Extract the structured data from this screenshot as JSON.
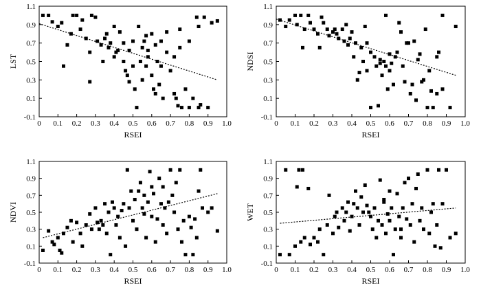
{
  "chart_data": [
    {
      "type": "scatter",
      "xlabel": "RSEI",
      "ylabel": "LST",
      "xlim": [
        0,
        1.0
      ],
      "ylim": [
        -0.1,
        1.1
      ],
      "xticks": [
        "0",
        "0.1",
        "0.2",
        "0.3",
        "0.4",
        "0.5",
        "0.6",
        "0.7",
        "0.8",
        "0.9",
        "1.0"
      ],
      "yticks": [
        "-0.1",
        "0.1",
        "0.3",
        "0.5",
        "0.7",
        "0.9",
        "1.1"
      ],
      "marker_color": "#000000",
      "trendline": {
        "x": [
          0.0,
          0.95
        ],
        "y": [
          0.91,
          0.3
        ],
        "style": "dotted"
      },
      "points": [
        [
          0.02,
          1.0
        ],
        [
          0.05,
          1.0
        ],
        [
          0.07,
          0.93
        ],
        [
          0.1,
          0.88
        ],
        [
          0.12,
          0.92
        ],
        [
          0.13,
          0.45
        ],
        [
          0.15,
          0.68
        ],
        [
          0.17,
          0.8
        ],
        [
          0.18,
          1.0
        ],
        [
          0.2,
          1.0
        ],
        [
          0.22,
          0.85
        ],
        [
          0.25,
          0.75
        ],
        [
          0.27,
          0.28
        ],
        [
          0.27,
          0.6
        ],
        [
          0.28,
          1.0
        ],
        [
          0.3,
          0.98
        ],
        [
          0.31,
          0.72
        ],
        [
          0.33,
          0.68
        ],
        [
          0.35,
          0.75
        ],
        [
          0.36,
          0.8
        ],
        [
          0.37,
          0.65
        ],
        [
          0.38,
          0.7
        ],
        [
          0.4,
          0.88
        ],
        [
          0.4,
          0.55
        ],
        [
          0.42,
          0.62
        ],
        [
          0.43,
          0.82
        ],
        [
          0.45,
          0.7
        ],
        [
          0.45,
          0.5
        ],
        [
          0.46,
          0.4
        ],
        [
          0.47,
          0.35
        ],
        [
          0.48,
          0.62
        ],
        [
          0.48,
          0.28
        ],
        [
          0.5,
          0.72
        ],
        [
          0.5,
          0.45
        ],
        [
          0.51,
          0.2
        ],
        [
          0.52,
          0.0
        ],
        [
          0.53,
          0.88
        ],
        [
          0.54,
          0.5
        ],
        [
          0.55,
          0.65
        ],
        [
          0.55,
          0.3
        ],
        [
          0.56,
          0.72
        ],
        [
          0.57,
          0.45
        ],
        [
          0.58,
          0.62
        ],
        [
          0.58,
          0.55
        ],
        [
          0.6,
          0.8
        ],
        [
          0.6,
          0.35
        ],
        [
          0.61,
          0.2
        ],
        [
          0.62,
          0.68
        ],
        [
          0.62,
          0.15
        ],
        [
          0.63,
          0.5
        ],
        [
          0.64,
          0.25
        ],
        [
          0.65,
          0.72
        ],
        [
          0.65,
          0.45
        ],
        [
          0.66,
          0.1
        ],
        [
          0.68,
          0.82
        ],
        [
          0.68,
          0.6
        ],
        [
          0.7,
          0.4
        ],
        [
          0.72,
          0.55
        ],
        [
          0.72,
          0.15
        ],
        [
          0.73,
          0.1
        ],
        [
          0.74,
          0.02
        ],
        [
          0.75,
          0.85
        ],
        [
          0.75,
          0.65
        ],
        [
          0.76,
          0.0
        ],
        [
          0.78,
          0.2
        ],
        [
          0.8,
          0.0
        ],
        [
          0.8,
          0.72
        ],
        [
          0.82,
          0.1
        ],
        [
          0.84,
          0.98
        ],
        [
          0.85,
          0.0
        ],
        [
          0.85,
          0.88
        ],
        [
          0.86,
          0.03
        ],
        [
          0.88,
          0.98
        ],
        [
          0.9,
          0.0
        ],
        [
          0.92,
          0.92
        ],
        [
          0.95,
          0.94
        ],
        [
          0.23,
          0.95
        ],
        [
          0.34,
          0.5
        ],
        [
          0.41,
          0.6
        ],
        [
          0.57,
          0.78
        ]
      ]
    },
    {
      "type": "scatter",
      "xlabel": "RSEI",
      "ylabel": "NDSI",
      "xlim": [
        0,
        1.0
      ],
      "ylim": [
        -0.1,
        1.1
      ],
      "xticks": [
        "0",
        "0.1",
        "0.2",
        "0.3",
        "0.4",
        "0.5",
        "0.6",
        "0.7",
        "0.8",
        "0.9",
        "1.0"
      ],
      "yticks": [
        "-0.1",
        "0.1",
        "0.3",
        "0.5",
        "0.7",
        "0.9",
        "1.1"
      ],
      "marker_color": "#000000",
      "trendline": {
        "x": [
          0.0,
          0.95
        ],
        "y": [
          0.96,
          0.35
        ],
        "style": "dotted"
      },
      "points": [
        [
          0.02,
          0.95
        ],
        [
          0.05,
          0.88
        ],
        [
          0.07,
          0.95
        ],
        [
          0.1,
          1.0
        ],
        [
          0.11,
          0.9
        ],
        [
          0.13,
          1.0
        ],
        [
          0.14,
          0.65
        ],
        [
          0.15,
          0.85
        ],
        [
          0.17,
          1.0
        ],
        [
          0.18,
          0.92
        ],
        [
          0.2,
          0.85
        ],
        [
          0.22,
          0.8
        ],
        [
          0.23,
          0.65
        ],
        [
          0.25,
          0.92
        ],
        [
          0.27,
          0.85
        ],
        [
          0.28,
          0.78
        ],
        [
          0.3,
          0.82
        ],
        [
          0.31,
          0.85
        ],
        [
          0.32,
          0.8
        ],
        [
          0.33,
          0.75
        ],
        [
          0.35,
          0.85
        ],
        [
          0.36,
          0.72
        ],
        [
          0.38,
          0.68
        ],
        [
          0.39,
          0.75
        ],
        [
          0.4,
          0.82
        ],
        [
          0.41,
          0.55
        ],
        [
          0.42,
          0.7
        ],
        [
          0.43,
          0.3
        ],
        [
          0.45,
          0.65
        ],
        [
          0.46,
          0.5
        ],
        [
          0.48,
          0.7
        ],
        [
          0.48,
          0.4
        ],
        [
          0.5,
          0.6
        ],
        [
          0.5,
          0.0
        ],
        [
          0.52,
          0.55
        ],
        [
          0.53,
          0.45
        ],
        [
          0.54,
          0.02
        ],
        [
          0.55,
          0.48
        ],
        [
          0.56,
          0.35
        ],
        [
          0.57,
          0.5
        ],
        [
          0.58,
          0.45
        ],
        [
          0.59,
          0.2
        ],
        [
          0.6,
          0.4
        ],
        [
          0.61,
          0.48
        ],
        [
          0.62,
          0.25
        ],
        [
          0.63,
          0.55
        ],
        [
          0.64,
          0.6
        ],
        [
          0.65,
          0.92
        ],
        [
          0.66,
          0.82
        ],
        [
          0.67,
          0.45
        ],
        [
          0.68,
          0.28
        ],
        [
          0.7,
          0.7
        ],
        [
          0.71,
          0.15
        ],
        [
          0.72,
          0.25
        ],
        [
          0.73,
          0.72
        ],
        [
          0.74,
          0.08
        ],
        [
          0.75,
          0.52
        ],
        [
          0.76,
          0.58
        ],
        [
          0.78,
          0.3
        ],
        [
          0.79,
          0.85
        ],
        [
          0.8,
          0.0
        ],
        [
          0.81,
          0.4
        ],
        [
          0.82,
          0.18
        ],
        [
          0.83,
          0.0
        ],
        [
          0.85,
          0.55
        ],
        [
          0.85,
          0.15
        ],
        [
          0.86,
          0.6
        ],
        [
          0.88,
          1.0
        ],
        [
          0.88,
          0.2
        ],
        [
          0.92,
          0.0
        ],
        [
          0.95,
          0.88
        ],
        [
          0.24,
          0.98
        ],
        [
          0.37,
          0.9
        ],
        [
          0.44,
          0.38
        ],
        [
          0.47,
          0.88
        ],
        [
          0.58,
          1.0
        ],
        [
          0.6,
          0.58
        ],
        [
          0.69,
          0.7
        ],
        [
          0.77,
          0.28
        ],
        [
          0.55,
          0.52
        ]
      ]
    },
    {
      "type": "scatter",
      "xlabel": "RSEI",
      "ylabel": "NDVI",
      "xlim": [
        0,
        1.0
      ],
      "ylim": [
        -0.1,
        1.1
      ],
      "xticks": [
        "0",
        "0.1",
        "0.2",
        "0.3",
        "0.4",
        "0.5",
        "0.6",
        "0.7",
        "0.8",
        "0.9",
        "1.0"
      ],
      "yticks": [
        "-0.1",
        "0.1",
        "0.3",
        "0.5",
        "0.7",
        "0.9",
        "1.1"
      ],
      "marker_color": "#000000",
      "trendline": {
        "x": [
          0.02,
          0.95
        ],
        "y": [
          0.2,
          0.72
        ],
        "style": "dotted"
      },
      "points": [
        [
          0.02,
          0.05
        ],
        [
          0.05,
          0.28
        ],
        [
          0.07,
          0.15
        ],
        [
          0.08,
          0.12
        ],
        [
          0.1,
          0.2
        ],
        [
          0.11,
          0.05
        ],
        [
          0.12,
          0.02
        ],
        [
          0.13,
          0.25
        ],
        [
          0.15,
          0.32
        ],
        [
          0.17,
          0.4
        ],
        [
          0.18,
          0.15
        ],
        [
          0.2,
          0.38
        ],
        [
          0.22,
          0.25
        ],
        [
          0.23,
          0.1
        ],
        [
          0.25,
          0.35
        ],
        [
          0.27,
          0.48
        ],
        [
          0.28,
          0.3
        ],
        [
          0.3,
          0.55
        ],
        [
          0.31,
          0.38
        ],
        [
          0.32,
          0.3
        ],
        [
          0.33,
          0.4
        ],
        [
          0.35,
          0.6
        ],
        [
          0.36,
          0.25
        ],
        [
          0.37,
          0.5
        ],
        [
          0.38,
          0.0
        ],
        [
          0.4,
          0.55
        ],
        [
          0.41,
          0.35
        ],
        [
          0.42,
          0.45
        ],
        [
          0.43,
          0.2
        ],
        [
          0.45,
          0.6
        ],
        [
          0.46,
          0.1
        ],
        [
          0.47,
          1.0
        ],
        [
          0.48,
          0.55
        ],
        [
          0.5,
          0.4
        ],
        [
          0.51,
          0.65
        ],
        [
          0.52,
          0.3
        ],
        [
          0.53,
          0.75
        ],
        [
          0.54,
          0.85
        ],
        [
          0.55,
          0.55
        ],
        [
          0.56,
          0.7
        ],
        [
          0.57,
          0.2
        ],
        [
          0.58,
          0.62
        ],
        [
          0.6,
          0.8
        ],
        [
          0.6,
          0.45
        ],
        [
          0.61,
          0.72
        ],
        [
          0.62,
          0.15
        ],
        [
          0.63,
          0.42
        ],
        [
          0.64,
          0.9
        ],
        [
          0.65,
          0.6
        ],
        [
          0.66,
          0.35
        ],
        [
          0.67,
          0.55
        ],
        [
          0.68,
          0.25
        ],
        [
          0.7,
          1.0
        ],
        [
          0.71,
          0.7
        ],
        [
          0.72,
          0.5
        ],
        [
          0.73,
          0.85
        ],
        [
          0.74,
          0.3
        ],
        [
          0.75,
          1.0
        ],
        [
          0.76,
          0.15
        ],
        [
          0.78,
          0.0
        ],
        [
          0.8,
          0.45
        ],
        [
          0.81,
          0.32
        ],
        [
          0.82,
          0.0
        ],
        [
          0.84,
          0.2
        ],
        [
          0.85,
          0.75
        ],
        [
          0.86,
          1.0
        ],
        [
          0.87,
          0.55
        ],
        [
          0.9,
          0.5
        ],
        [
          0.92,
          0.55
        ],
        [
          0.95,
          0.28
        ],
        [
          0.34,
          0.35
        ],
        [
          0.39,
          0.62
        ],
        [
          0.44,
          0.52
        ],
        [
          0.49,
          0.75
        ],
        [
          0.56,
          0.48
        ],
        [
          0.59,
          0.98
        ],
        [
          0.66,
          0.8
        ],
        [
          0.69,
          0.62
        ],
        [
          0.77,
          0.4
        ],
        [
          0.83,
          0.42
        ]
      ]
    },
    {
      "type": "scatter",
      "xlabel": "RSEI",
      "ylabel": "WET",
      "xlim": [
        0,
        1.0
      ],
      "ylim": [
        -0.1,
        1.1
      ],
      "xticks": [
        "0",
        "0.1",
        "0.2",
        "0.3",
        "0.4",
        "0.5",
        "0.6",
        "0.7",
        "0.8",
        "0.9",
        "1.0"
      ],
      "yticks": [
        "-0.1",
        "0.1",
        "0.3",
        "0.5",
        "0.7",
        "0.9",
        "1.1"
      ],
      "marker_color": "#000000",
      "trendline": {
        "x": [
          0.02,
          0.95
        ],
        "y": [
          0.37,
          0.55
        ],
        "style": "dotted"
      },
      "points": [
        [
          0.02,
          0.0
        ],
        [
          0.05,
          1.0
        ],
        [
          0.07,
          0.0
        ],
        [
          0.1,
          0.1
        ],
        [
          0.11,
          0.8
        ],
        [
          0.12,
          1.0
        ],
        [
          0.13,
          0.15
        ],
        [
          0.14,
          1.0
        ],
        [
          0.15,
          0.2
        ],
        [
          0.17,
          0.78
        ],
        [
          0.18,
          0.12
        ],
        [
          0.2,
          0.2
        ],
        [
          0.22,
          0.15
        ],
        [
          0.23,
          0.3
        ],
        [
          0.25,
          0.0
        ],
        [
          0.27,
          0.35
        ],
        [
          0.28,
          0.7
        ],
        [
          0.3,
          0.25
        ],
        [
          0.31,
          0.45
        ],
        [
          0.32,
          0.5
        ],
        [
          0.33,
          0.32
        ],
        [
          0.35,
          0.55
        ],
        [
          0.36,
          0.4
        ],
        [
          0.37,
          0.5
        ],
        [
          0.38,
          0.62
        ],
        [
          0.4,
          0.45
        ],
        [
          0.41,
          0.6
        ],
        [
          0.42,
          0.75
        ],
        [
          0.43,
          0.55
        ],
        [
          0.45,
          0.68
        ],
        [
          0.46,
          0.5
        ],
        [
          0.47,
          0.82
        ],
        [
          0.48,
          0.58
        ],
        [
          0.5,
          0.45
        ],
        [
          0.51,
          0.3
        ],
        [
          0.52,
          0.55
        ],
        [
          0.53,
          0.2
        ],
        [
          0.54,
          0.4
        ],
        [
          0.55,
          0.88
        ],
        [
          0.56,
          0.35
        ],
        [
          0.57,
          0.65
        ],
        [
          0.58,
          0.25
        ],
        [
          0.6,
          0.75
        ],
        [
          0.6,
          0.4
        ],
        [
          0.61,
          0.55
        ],
        [
          0.62,
          0.0
        ],
        [
          0.63,
          0.3
        ],
        [
          0.64,
          0.72
        ],
        [
          0.65,
          0.45
        ],
        [
          0.66,
          0.2
        ],
        [
          0.67,
          0.55
        ],
        [
          0.68,
          0.85
        ],
        [
          0.7,
          0.9
        ],
        [
          0.71,
          0.35
        ],
        [
          0.72,
          0.6
        ],
        [
          0.73,
          0.15
        ],
        [
          0.74,
          0.78
        ],
        [
          0.75,
          0.95
        ],
        [
          0.76,
          0.4
        ],
        [
          0.78,
          0.3
        ],
        [
          0.8,
          1.0
        ],
        [
          0.81,
          0.25
        ],
        [
          0.82,
          0.5
        ],
        [
          0.84,
          0.1
        ],
        [
          0.85,
          0.35
        ],
        [
          0.86,
          1.0
        ],
        [
          0.87,
          0.08
        ],
        [
          0.9,
          1.0
        ],
        [
          0.92,
          0.2
        ],
        [
          0.95,
          0.25
        ],
        [
          0.39,
          0.28
        ],
        [
          0.44,
          0.35
        ],
        [
          0.49,
          0.5
        ],
        [
          0.57,
          0.62
        ],
        [
          0.59,
          0.48
        ],
        [
          0.66,
          0.3
        ],
        [
          0.69,
          0.42
        ],
        [
          0.77,
          0.55
        ],
        [
          0.83,
          0.6
        ],
        [
          0.88,
          0.6
        ]
      ]
    }
  ]
}
